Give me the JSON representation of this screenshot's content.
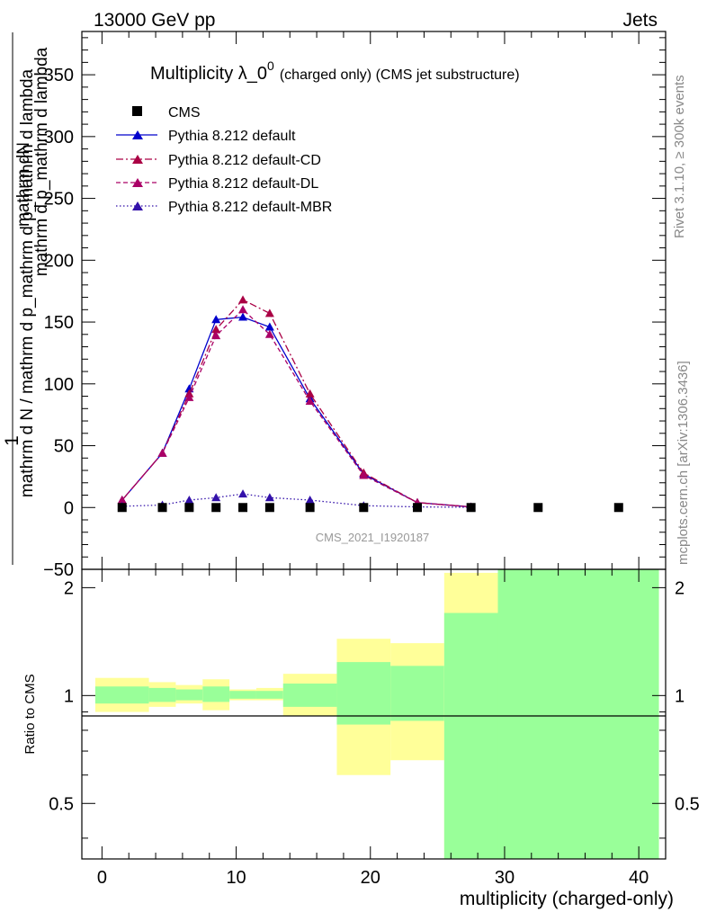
{
  "header": {
    "energy_label": "13000 GeV pp",
    "process_label": "Jets"
  },
  "side_labels": {
    "rivet": "Rivet 3.1.10, ≥ 300k events",
    "mcplots": "mcplots.cern.ch [arXiv:1306.3436]"
  },
  "chart_data": {
    "type": "line",
    "title_main": "Multiplicity λ_0",
    "title_sup": "0",
    "title_suffix": "(charged only) (CMS jet substructure)",
    "analysis_id": "CMS_2021_I1920187",
    "ylabel_numerator": "mathrm dN",
    "ylabel_denominator": "mathrm d p_mathrm d lambda",
    "ylabel_one": "1",
    "ylabel_inner": "mathrm d N / mathrm d p_mathrm d p_mathrm d lambda",
    "xlabel": "multiplicity (charged-only)",
    "ratio_ylabel": "Ratio to CMS",
    "xlim": [
      -1.5,
      42
    ],
    "ylim": [
      -50,
      385
    ],
    "ratio_ylim": [
      0.35,
      2.25
    ],
    "x_ticks": [
      "0",
      "10",
      "20",
      "30",
      "40"
    ],
    "y_ticks": [
      "−50",
      "0",
      "50",
      "100",
      "150",
      "200",
      "250",
      "300",
      "350"
    ],
    "ratio_ticks": [
      "0.5",
      "1",
      "2"
    ],
    "legend": [
      "CMS",
      "Pythia 8.212 default",
      "Pythia 8.212 default-CD",
      "Pythia 8.212 default-DL",
      "Pythia 8.212 default-MBR"
    ],
    "data": {
      "name": "CMS",
      "x": [
        1.5,
        4.5,
        6.5,
        8.5,
        10.5,
        12.5,
        15.5,
        19.5,
        23.5,
        27.5,
        32.5,
        38.5
      ],
      "y": [
        0,
        0,
        0,
        0,
        0,
        0,
        0,
        0,
        0,
        0,
        0,
        0
      ]
    },
    "series": [
      {
        "name": "Pythia 8.212 default",
        "color": "#0000cc",
        "dash": "",
        "x": [
          1.5,
          4.5,
          6.5,
          8.5,
          10.5,
          12.5,
          15.5,
          19.5,
          23.5,
          27.5
        ],
        "y": [
          6,
          44,
          96,
          152,
          154,
          146,
          88,
          27,
          4,
          0.5
        ]
      },
      {
        "name": "Pythia 8.212 default-CD",
        "color": "#aa0044",
        "dash": "8,3,2,3",
        "x": [
          1.5,
          4.5,
          6.5,
          8.5,
          10.5,
          12.5,
          15.5,
          19.5,
          23.5,
          27.5
        ],
        "y": [
          6,
          44,
          92,
          144,
          168,
          157,
          92,
          28,
          4,
          0.5
        ]
      },
      {
        "name": "Pythia 8.212 default-DL",
        "color": "#aa0066",
        "dash": "5,3",
        "x": [
          1.5,
          4.5,
          6.5,
          8.5,
          10.5,
          12.5,
          15.5,
          19.5,
          23.5,
          27.5
        ],
        "y": [
          6,
          44,
          89,
          139,
          160,
          140,
          86,
          26,
          4,
          0.5
        ]
      },
      {
        "name": "Pythia 8.212 default-MBR",
        "color": "#3311aa",
        "dash": "1.5,2.5",
        "x": [
          1.5,
          4.5,
          6.5,
          8.5,
          10.5,
          12.5,
          15.5,
          19.5,
          23.5,
          27.5
        ],
        "y": [
          1,
          2,
          6,
          8,
          11,
          8,
          6,
          1.5,
          0.5,
          0.2
        ]
      }
    ],
    "ratio_bands": [
      {
        "x0": -0.5,
        "x1": 3.5,
        "y_lo": 0.9,
        "y_hi": 1.12,
        "g_lo": 0.95,
        "g_hi": 1.06
      },
      {
        "x0": 3.5,
        "x1": 5.5,
        "y_lo": 0.93,
        "y_hi": 1.09,
        "g_lo": 0.96,
        "g_hi": 1.05
      },
      {
        "x0": 5.5,
        "x1": 7.5,
        "y_lo": 0.95,
        "y_hi": 1.07,
        "g_lo": 0.97,
        "g_hi": 1.04
      },
      {
        "x0": 7.5,
        "x1": 9.5,
        "y_lo": 0.91,
        "y_hi": 1.11,
        "g_lo": 0.96,
        "g_hi": 1.06
      },
      {
        "x0": 9.5,
        "x1": 11.5,
        "y_lo": 0.97,
        "y_hi": 1.04,
        "g_lo": 0.98,
        "g_hi": 1.03
      },
      {
        "x0": 11.5,
        "x1": 13.5,
        "y_lo": 0.97,
        "y_hi": 1.05,
        "g_lo": 0.98,
        "g_hi": 1.03
      },
      {
        "x0": 13.5,
        "x1": 17.5,
        "y_lo": 0.88,
        "y_hi": 1.15,
        "g_lo": 0.93,
        "g_hi": 1.08
      },
      {
        "x0": 17.5,
        "x1": 21.5,
        "y_lo": 0.6,
        "y_hi": 1.44,
        "g_lo": 0.83,
        "g_hi": 1.24
      },
      {
        "x0": 21.5,
        "x1": 25.5,
        "y_lo": 0.66,
        "y_hi": 1.4,
        "g_lo": 0.85,
        "g_hi": 1.21
      },
      {
        "x0": 25.5,
        "x1": 29.5,
        "y_lo": 0.3,
        "y_hi": 2.2,
        "g_lo": 0.3,
        "g_hi": 1.7
      },
      {
        "x0": 29.5,
        "x1": 41.5,
        "y_lo": 0.3,
        "y_hi": 2.5,
        "g_lo": 0.3,
        "g_hi": 2.5
      }
    ]
  }
}
